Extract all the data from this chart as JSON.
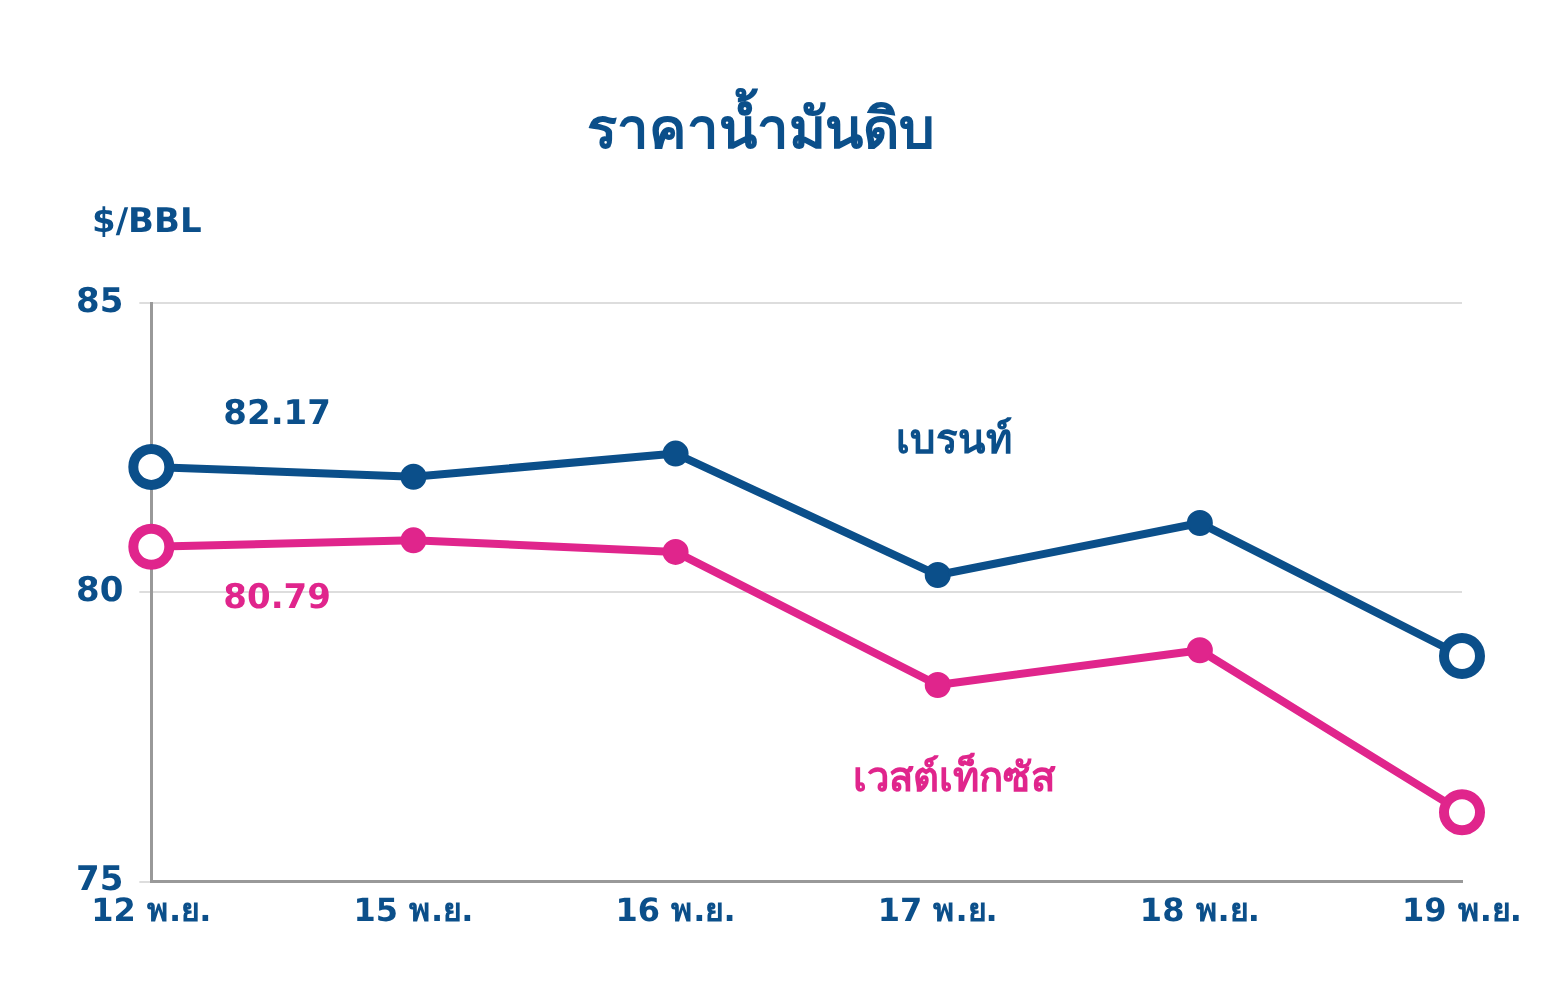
{
  "chart_data": {
    "type": "line",
    "title": "ราคาน้ำมันดิบ",
    "ylabel": "$/BBL",
    "categories": [
      "12 พ.ย.",
      "15 พ.ย.",
      "16 พ.ย.",
      "17 พ.ย.",
      "18 พ.ย.",
      "19 พ.ย."
    ],
    "series": [
      {
        "name": "เบรนท์",
        "color": "#0b4f8a",
        "values": [
          82.17,
          82.0,
          82.4,
          80.3,
          81.2,
          78.9
        ],
        "value_labels": [
          "82.17",
          null,
          null,
          null,
          null,
          null
        ]
      },
      {
        "name": "เวสต์เท็กซัส",
        "color": "#e0258c",
        "values": [
          80.79,
          80.9,
          80.7,
          78.4,
          79.0,
          76.2
        ],
        "value_labels": [
          "80.79",
          null,
          null,
          null,
          null,
          null
        ]
      }
    ],
    "ylim": [
      75,
      85
    ],
    "yticks": [
      75,
      80,
      85
    ],
    "grid": "y",
    "legend": false,
    "marker": "circle",
    "line_style": "solid"
  }
}
